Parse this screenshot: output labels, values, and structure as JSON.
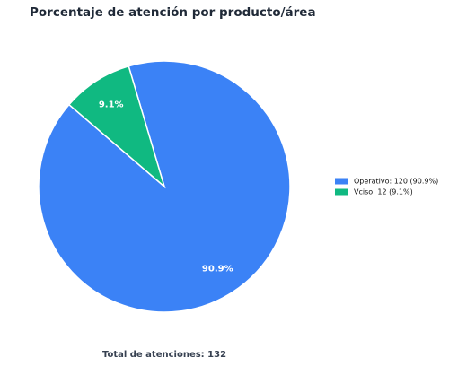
{
  "chart_data": {
    "type": "pie",
    "title": "Porcentaje de atención por producto/área",
    "categories": [
      "Operativo: 120 (90.9%)",
      "Vciso: 12 (9.1%)"
    ],
    "values": [
      90.9,
      9.1
    ],
    "value_labels": [
      "90.9%",
      "9.1%"
    ],
    "colors": [
      "#3b82f6",
      "#10b981"
    ],
    "legend": "right",
    "annotation": "Total de atenciones: 132"
  }
}
